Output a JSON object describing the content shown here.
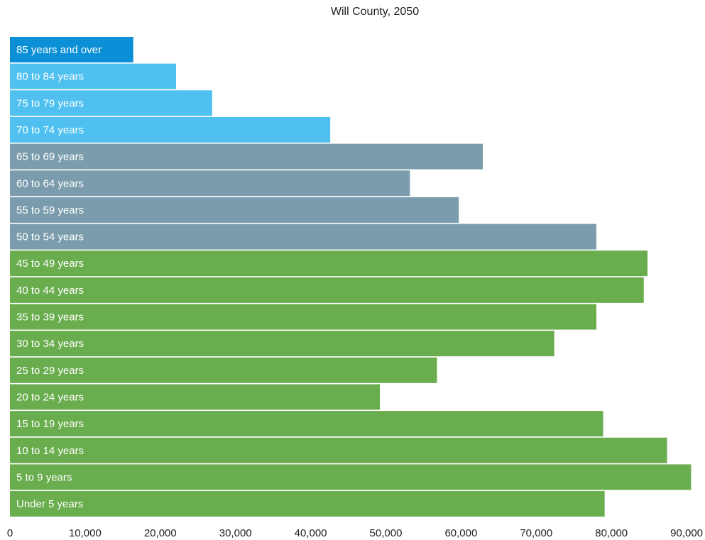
{
  "chart_data": {
    "type": "bar",
    "orientation": "horizontal",
    "title": "Will County, 2050",
    "xlabel": "",
    "ylabel": "",
    "xlim": [
      0,
      90000
    ],
    "x_ticks": [
      {
        "value": 0,
        "label": "0"
      },
      {
        "value": 10000,
        "label": "10,000"
      },
      {
        "value": 20000,
        "label": "20,000"
      },
      {
        "value": 30000,
        "label": "30,000"
      },
      {
        "value": 40000,
        "label": "40,000"
      },
      {
        "value": 50000,
        "label": "50,000"
      },
      {
        "value": 60000,
        "label": "60,000"
      },
      {
        "value": 70000,
        "label": "70,000"
      },
      {
        "value": 80000,
        "label": "80,000"
      },
      {
        "value": 90000,
        "label": "90,000"
      }
    ],
    "grid": false,
    "legend": "none",
    "colors": {
      "oldest": "#0b8fd6",
      "elderly": "#4fc0f0",
      "older_adult": "#7b9cad",
      "under_50": "#6aad4e"
    },
    "categories": [
      "85 years and over",
      "80 to 84 years",
      "75 to 79 years",
      "70 to 74 years",
      "65 to 69 years",
      "60 to 64 years",
      "55 to 59 years",
      "50 to 54 years",
      "45 to 49 years",
      "40 to 44 years",
      "35 to 39 years",
      "30 to 34 years",
      "25 to 29 years",
      "20 to 24 years",
      "15 to 19 years",
      "10 to 14 years",
      "5 to 9 years",
      "Under 5 years"
    ],
    "values": [
      16400,
      22100,
      26900,
      42600,
      62900,
      53200,
      59700,
      78000,
      84800,
      84300,
      78000,
      72400,
      56800,
      49200,
      78900,
      87400,
      90600,
      79100
    ],
    "bar_groups": [
      "oldest",
      "elderly",
      "elderly",
      "elderly",
      "older_adult",
      "older_adult",
      "older_adult",
      "older_adult",
      "under_50",
      "under_50",
      "under_50",
      "under_50",
      "under_50",
      "under_50",
      "under_50",
      "under_50",
      "under_50",
      "under_50"
    ]
  }
}
